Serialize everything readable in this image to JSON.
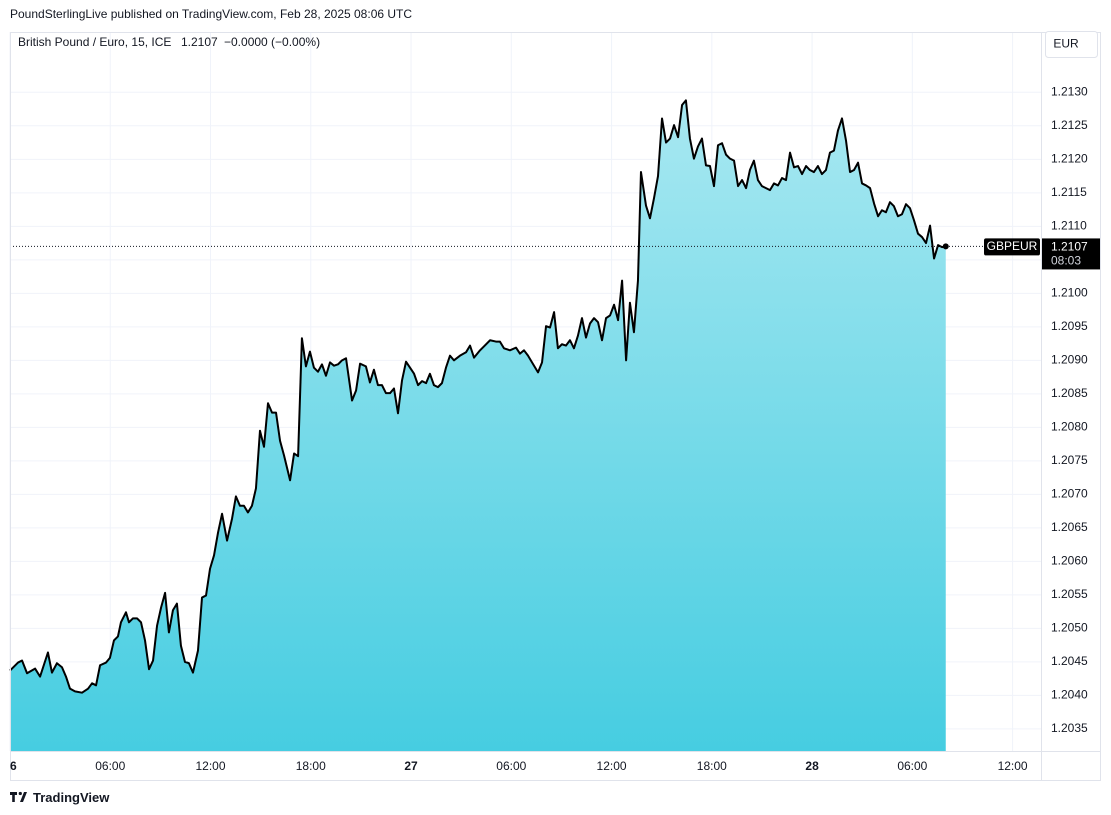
{
  "chart_data": {
    "type": "area",
    "header": "PoundSterlingLive published on TradingView.com, Feb 28, 2025 08:06 UTC",
    "instrument": "British Pound / Euro, 15, ICE",
    "change": "−0.0000 (−0.00%)",
    "currency": "EUR",
    "symbol": "GBPEUR",
    "last_value": 1.2107,
    "last_time": "08:03",
    "brand": "TradingView",
    "line_color": "#000000",
    "fill_top": "#a8e8f1",
    "fill_bottom": "#46cde1",
    "grid": true,
    "xlim": [
      0,
      61.7
    ],
    "ylim": [
      1.20317,
      1.2139
    ],
    "xticks": [
      {
        "value": 0,
        "label": "6"
      },
      {
        "value": 6,
        "label": "06:00"
      },
      {
        "value": 12,
        "label": "12:00"
      },
      {
        "value": 18,
        "label": "18:00"
      },
      {
        "value": 24,
        "label": "27"
      },
      {
        "value": 30,
        "label": "06:00"
      },
      {
        "value": 36,
        "label": "12:00"
      },
      {
        "value": 42,
        "label": "18:00"
      },
      {
        "value": 48,
        "label": "28"
      },
      {
        "value": 54,
        "label": "06:00"
      },
      {
        "value": 60,
        "label": "12:00"
      }
    ],
    "yticks": [
      {
        "value": 1.2035,
        "label": "1.2035"
      },
      {
        "value": 1.204,
        "label": "1.2040"
      },
      {
        "value": 1.2045,
        "label": "1.2045"
      },
      {
        "value": 1.205,
        "label": "1.2050"
      },
      {
        "value": 1.2055,
        "label": "1.2055"
      },
      {
        "value": 1.206,
        "label": "1.2060"
      },
      {
        "value": 1.2065,
        "label": "1.2065"
      },
      {
        "value": 1.207,
        "label": "1.2070"
      },
      {
        "value": 1.2075,
        "label": "1.2075"
      },
      {
        "value": 1.208,
        "label": "1.2080"
      },
      {
        "value": 1.2085,
        "label": "1.2085"
      },
      {
        "value": 1.209,
        "label": "1.2090"
      },
      {
        "value": 1.2095,
        "label": "1.2095"
      },
      {
        "value": 1.21,
        "label": "1.2100"
      },
      {
        "value": 1.2105,
        "label": "1.2105"
      },
      {
        "value": 1.211,
        "label": "1.2110"
      },
      {
        "value": 1.2115,
        "label": "1.2115"
      },
      {
        "value": 1.212,
        "label": "1.2120"
      },
      {
        "value": 1.2125,
        "label": "1.2125"
      },
      {
        "value": 1.213,
        "label": "1.2130"
      }
    ],
    "x": [
      0,
      0.48,
      0.72,
      1.02,
      1.5,
      1.8,
      2.27,
      2.51,
      2.81,
      3.11,
      3.35,
      3.59,
      3.89,
      4.31,
      4.67,
      4.91,
      5.15,
      5.39,
      5.75,
      5.98,
      6.22,
      6.46,
      6.64,
      6.94,
      7.12,
      7.36,
      7.6,
      7.84,
      8.08,
      8.32,
      8.56,
      8.8,
      9.04,
      9.28,
      9.51,
      9.75,
      9.99,
      10.23,
      10.47,
      10.71,
      10.95,
      11.25,
      11.49,
      11.73,
      11.97,
      12.21,
      12.45,
      12.69,
      12.99,
      13.29,
      13.52,
      13.76,
      14.0,
      14.24,
      14.48,
      14.72,
      14.96,
      15.2,
      15.44,
      15.68,
      15.92,
      16.16,
      16.4,
      16.76,
      17.0,
      17.24,
      17.47,
      17.71,
      17.95,
      18.19,
      18.43,
      18.67,
      18.91,
      19.15,
      19.39,
      19.63,
      19.87,
      20.11,
      20.47,
      20.71,
      20.95,
      21.3,
      21.54,
      21.78,
      22.02,
      22.26,
      22.5,
      22.74,
      22.98,
      23.22,
      23.46,
      23.7,
      23.94,
      24.18,
      24.42,
      24.66,
      24.9,
      25.13,
      25.37,
      25.61,
      25.85,
      26.09,
      26.33,
      26.57,
      26.93,
      27.29,
      27.53,
      27.77,
      28.13,
      28.37,
      28.73,
      29.08,
      29.32,
      29.56,
      29.92,
      30.28,
      30.52,
      30.76,
      31.0,
      31.24,
      31.6,
      31.84,
      32.08,
      32.32,
      32.56,
      32.79,
      33.03,
      33.27,
      33.51,
      33.75,
      33.99,
      34.23,
      34.47,
      34.71,
      34.95,
      35.19,
      35.43,
      35.67,
      35.91,
      36.15,
      36.39,
      36.63,
      36.87,
      37.1,
      37.34,
      37.58,
      37.76,
      38.06,
      38.3,
      38.54,
      38.78,
      39.02,
      39.26,
      39.5,
      39.74,
      39.98,
      40.22,
      40.45,
      40.69,
      40.93,
      41.17,
      41.41,
      41.65,
      41.89,
      42.13,
      42.37,
      42.61,
      42.85,
      43.09,
      43.33,
      43.57,
      43.81,
      44.05,
      44.28,
      44.52,
      44.76,
      45.0,
      45.24,
      45.48,
      45.72,
      45.96,
      46.2,
      46.44,
      46.68,
      46.92,
      47.16,
      47.4,
      47.64,
      47.87,
      48.11,
      48.35,
      48.59,
      48.83,
      49.07,
      49.31,
      49.55,
      49.79,
      50.03,
      50.27,
      50.51,
      50.75,
      50.99,
      51.23,
      51.47,
      51.71,
      51.95,
      52.18,
      52.42,
      52.66,
      52.9,
      53.14,
      53.38,
      53.62,
      53.86,
      54.1,
      54.34,
      54.58,
      54.82,
      55.06,
      55.3,
      55.54,
      55.78,
      56.0
    ],
    "values": [
      1.20437,
      1.20449,
      1.20452,
      1.20433,
      1.2044,
      1.20428,
      1.20464,
      1.20434,
      1.20448,
      1.20442,
      1.20428,
      1.2041,
      1.20406,
      1.20404,
      1.2041,
      1.20418,
      1.20415,
      1.20445,
      1.20449,
      1.20456,
      1.20482,
      1.20488,
      1.20509,
      1.20524,
      1.20509,
      1.20515,
      1.20515,
      1.20509,
      1.20482,
      1.20439,
      1.20452,
      1.20504,
      1.20531,
      1.20553,
      1.20494,
      1.20527,
      1.20537,
      1.20474,
      1.2045,
      1.20448,
      1.20434,
      1.20467,
      1.20546,
      1.20549,
      1.20589,
      1.20609,
      1.20643,
      1.20671,
      1.20631,
      1.20664,
      1.20697,
      1.20683,
      1.20683,
      1.20673,
      1.20683,
      1.20709,
      1.20795,
      1.20771,
      1.20836,
      1.20822,
      1.20822,
      1.2078,
      1.20758,
      1.20721,
      1.20761,
      1.20757,
      1.20933,
      1.20891,
      1.20913,
      1.20889,
      1.20883,
      1.20894,
      1.20877,
      1.20897,
      1.20892,
      1.20894,
      1.209,
      1.20903,
      1.2084,
      1.20855,
      1.20895,
      1.20891,
      1.20867,
      1.20886,
      1.20863,
      1.20863,
      1.20851,
      1.20851,
      1.20858,
      1.20821,
      1.2087,
      1.20898,
      1.20889,
      1.2088,
      1.20863,
      1.20869,
      1.20866,
      1.2088,
      1.20863,
      1.2086,
      1.20866,
      1.20889,
      1.20907,
      1.209,
      1.20907,
      1.20912,
      1.20922,
      1.20904,
      1.20915,
      1.20921,
      1.2093,
      1.20928,
      1.20928,
      1.20918,
      1.20915,
      1.20919,
      1.2091,
      1.20915,
      1.20907,
      1.20897,
      1.20882,
      1.20897,
      1.20951,
      1.20949,
      1.20972,
      1.20918,
      1.20924,
      1.20922,
      1.2093,
      1.20918,
      1.20937,
      1.20963,
      1.20934,
      1.20955,
      1.20963,
      1.20957,
      1.2093,
      1.20963,
      1.20967,
      1.20983,
      1.2096,
      1.21019,
      1.209,
      1.20986,
      1.20942,
      1.21019,
      1.21181,
      1.21131,
      1.21112,
      1.21142,
      1.21175,
      1.21261,
      1.21225,
      1.21231,
      1.21251,
      1.21233,
      1.21281,
      1.21288,
      1.21231,
      1.21201,
      1.21219,
      1.21231,
      1.21191,
      1.2119,
      1.2116,
      1.21221,
      1.21224,
      1.21207,
      1.21201,
      1.21198,
      1.2116,
      1.21169,
      1.21157,
      1.21184,
      1.21198,
      1.21169,
      1.2116,
      1.21157,
      1.21154,
      1.21164,
      1.21161,
      1.21172,
      1.21169,
      1.2121,
      1.21188,
      1.2119,
      1.21178,
      1.2119,
      1.21184,
      1.21181,
      1.2119,
      1.21178,
      1.21184,
      1.2121,
      1.21213,
      1.21243,
      1.21261,
      1.21228,
      1.21181,
      1.21184,
      1.21195,
      1.21164,
      1.21161,
      1.21157,
      1.21134,
      1.21115,
      1.21124,
      1.21121,
      1.21136,
      1.2113,
      1.21115,
      1.21118,
      1.21133,
      1.21127,
      1.21109,
      1.21089,
      1.21084,
      1.21075,
      1.21101,
      1.21052,
      1.21072,
      1.21069,
      1.2107
    ]
  }
}
